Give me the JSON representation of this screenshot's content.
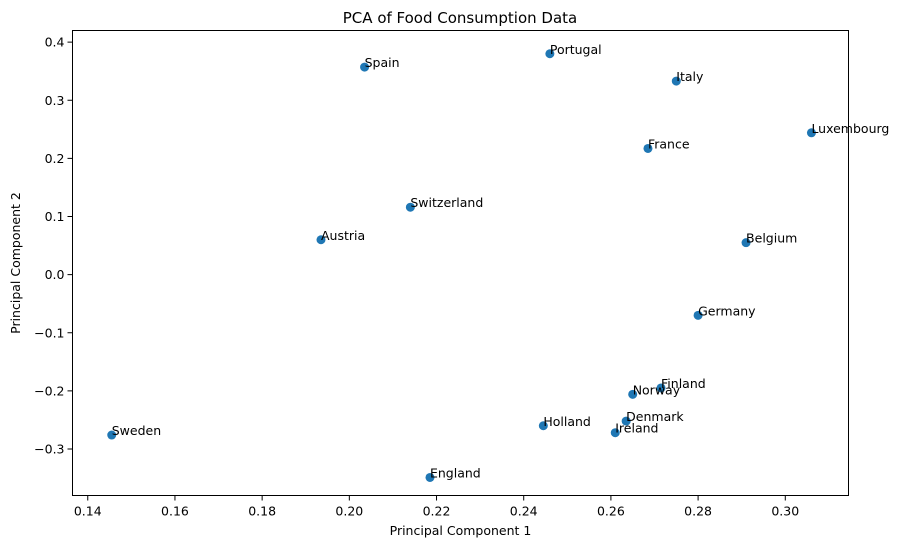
{
  "chart_data": {
    "type": "scatter",
    "title": "PCA of Food Consumption Data",
    "xlabel": "Principal Component 1",
    "ylabel": "Principal Component 2",
    "xlim": [
      0.1365,
      0.3145
    ],
    "ylim": [
      -0.38,
      0.42
    ],
    "xticks": [
      0.14,
      0.16,
      0.18,
      0.2,
      0.22,
      0.24,
      0.26,
      0.28,
      0.3
    ],
    "xtick_labels": [
      "0.14",
      "0.16",
      "0.18",
      "0.20",
      "0.22",
      "0.24",
      "0.26",
      "0.28",
      "0.30"
    ],
    "yticks": [
      -0.3,
      -0.2,
      -0.1,
      0.0,
      0.1,
      0.2,
      0.3,
      0.4
    ],
    "ytick_labels": [
      "−0.3",
      "−0.2",
      "−0.1",
      "0.0",
      "0.1",
      "0.2",
      "0.3",
      "0.4"
    ],
    "grid": false,
    "marker_color": "#1f77b4",
    "points": [
      {
        "label": "Portugal",
        "x": 0.246,
        "y": 0.38
      },
      {
        "label": "Spain",
        "x": 0.2035,
        "y": 0.357
      },
      {
        "label": "Italy",
        "x": 0.275,
        "y": 0.333
      },
      {
        "label": "Luxembourg",
        "x": 0.306,
        "y": 0.244
      },
      {
        "label": "France",
        "x": 0.2685,
        "y": 0.217
      },
      {
        "label": "Switzerland",
        "x": 0.214,
        "y": 0.116
      },
      {
        "label": "Austria",
        "x": 0.1935,
        "y": 0.06
      },
      {
        "label": "Belgium",
        "x": 0.291,
        "y": 0.055
      },
      {
        "label": "Germany",
        "x": 0.28,
        "y": -0.07
      },
      {
        "label": "Finland",
        "x": 0.2715,
        "y": -0.195
      },
      {
        "label": "Norway",
        "x": 0.265,
        "y": -0.206
      },
      {
        "label": "Denmark",
        "x": 0.2635,
        "y": -0.252
      },
      {
        "label": "Holland",
        "x": 0.2445,
        "y": -0.26
      },
      {
        "label": "Ireland",
        "x": 0.261,
        "y": -0.272
      },
      {
        "label": "Sweden",
        "x": 0.1455,
        "y": -0.276
      },
      {
        "label": "England",
        "x": 0.2185,
        "y": -0.349
      }
    ]
  }
}
